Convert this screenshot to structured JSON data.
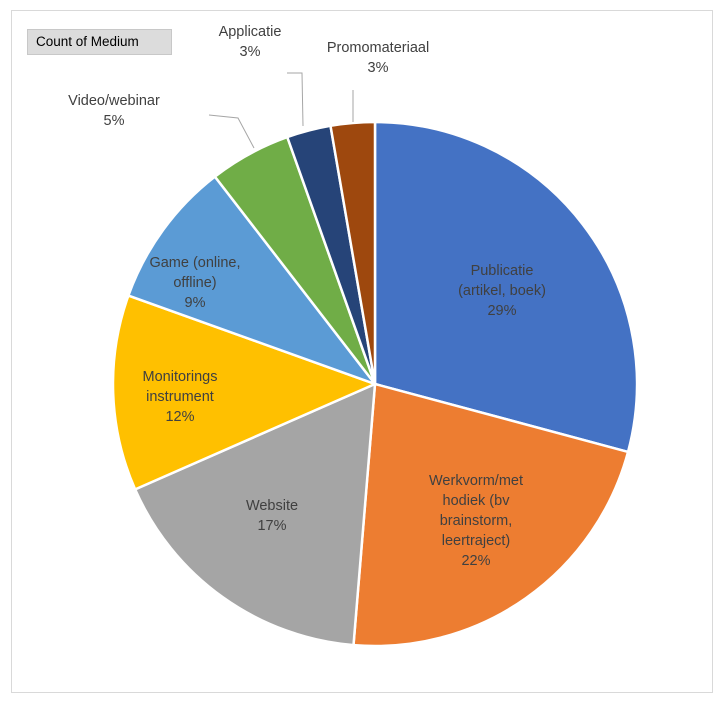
{
  "field_button": "Count of Medium",
  "chart_data": {
    "type": "pie",
    "title": "",
    "slices": [
      {
        "label": [
          "Publicatie",
          "(artikel, boek)"
        ],
        "pct": "29%",
        "value": 29,
        "color": "#4472c4",
        "lbl": "inside"
      },
      {
        "label": [
          "Werkvorm/met",
          "hodiek (bv",
          "brainstorm,",
          "leertraject)"
        ],
        "pct": "22%",
        "value": 22,
        "color": "#ed7d31",
        "lbl": "inside"
      },
      {
        "label": [
          "Website"
        ],
        "pct": "17%",
        "value": 17,
        "color": "#a5a5a5",
        "lbl": "inside"
      },
      {
        "label": [
          "Monitorings",
          "instrument"
        ],
        "pct": "12%",
        "value": 12,
        "color": "#ffc000",
        "lbl": "inside"
      },
      {
        "label": [
          "Game (online,",
          "offline)"
        ],
        "pct": "9%",
        "value": 9,
        "color": "#5b9bd5",
        "lbl": "inside"
      },
      {
        "label": [
          "Video/webinar"
        ],
        "pct": "5%",
        "value": 5,
        "color": "#70ad47",
        "lbl": "outside"
      },
      {
        "label": [
          "Applicatie"
        ],
        "pct": "3%",
        "value": 2.7,
        "color": "#264478",
        "lbl": "outside"
      },
      {
        "label": [
          "Promomateriaal"
        ],
        "pct": "3%",
        "value": 2.7,
        "color": "#9e480e",
        "lbl": "outside"
      }
    ]
  }
}
